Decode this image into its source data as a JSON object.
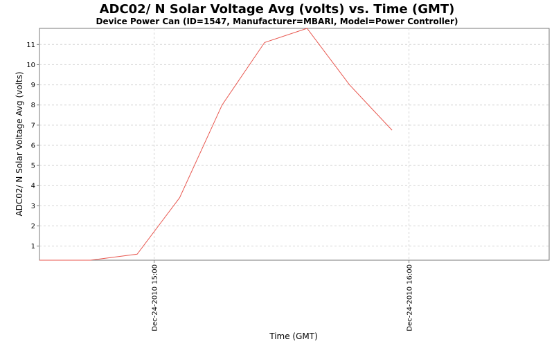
{
  "chart_data": {
    "type": "line",
    "title": "ADC02/ N Solar Voltage Avg (volts) vs. Time (GMT)",
    "subtitle": "Device Power Can (ID=1547, Manufacturer=MBARI, Model=Power Controller)",
    "xlabel": "Time (GMT)",
    "ylabel": "ADC02/ N Solar Voltage Avg (volts)",
    "xlim_minutes": [
      -27,
      93
    ],
    "ylim": [
      0.3,
      11.8
    ],
    "grid": true,
    "x_ticks": [
      {
        "minutes": 0,
        "label": "Dec-24-2010 15:00"
      },
      {
        "minutes": 60,
        "label": "Dec-24-2010 16:00"
      }
    ],
    "y_ticks": [
      1,
      2,
      3,
      4,
      5,
      6,
      7,
      8,
      9,
      10,
      11
    ],
    "series": [
      {
        "name": "ADC02/ N Solar Voltage Avg",
        "color": "#e8574f",
        "x_minutes": [
          -27,
          -15,
          -4,
          6,
          16,
          26,
          36,
          46,
          56
        ],
        "values": [
          0.3,
          0.3,
          0.6,
          3.4,
          8.0,
          11.1,
          11.8,
          9.0,
          6.75
        ]
      }
    ]
  }
}
